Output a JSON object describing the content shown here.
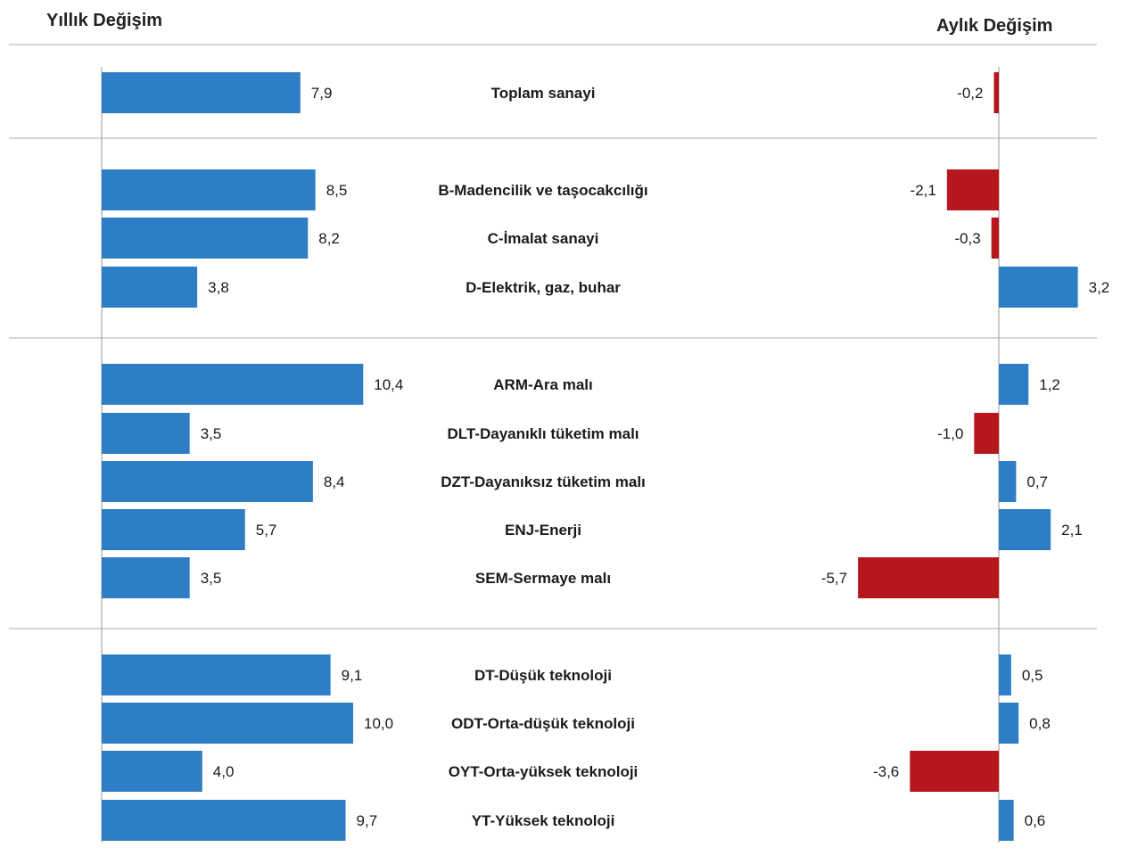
{
  "chart_data": {
    "type": "bar",
    "left_title": "Yıllık Değişim",
    "right_title": "Aylık Değişim",
    "categories": [
      "Toplam sanayi",
      "B-Madencilik ve taşocakcılığı",
      "C-İmalat sanayi",
      "D-Elektrik, gaz, buhar",
      "ARM-Ara malı",
      "DLT-Dayanıklı tüketim malı",
      "DZT-Dayanıksız tüketim malı",
      "ENJ-Enerji",
      "SEM-Sermaye malı",
      "DT-Düşük teknoloji",
      "ODT-Orta-düşük teknoloji",
      "OYT-Orta-yüksek teknoloji",
      "YT-Yüksek teknoloji"
    ],
    "series": [
      {
        "values": [
          7.9,
          8.5,
          8.2,
          3.8,
          10.4,
          3.5,
          8.4,
          5.7,
          3.5,
          9.1,
          10.0,
          4.0,
          9.7
        ],
        "labels": [
          "7,9",
          "8,5",
          "8,2",
          "3,8",
          "10,4",
          "3,5",
          "8,4",
          "5,7",
          "3,5",
          "9,1",
          "10,0",
          "4,0",
          "9,7"
        ]
      },
      {
        "values": [
          -0.2,
          -2.1,
          -0.3,
          3.2,
          1.2,
          -1.0,
          0.7,
          2.1,
          -5.7,
          0.5,
          0.8,
          -3.6,
          0.6
        ],
        "labels": [
          "-0,2",
          "-2,1",
          "-0,3",
          "3,2",
          "1,2",
          "-1,0",
          "0,7",
          "2,1",
          "-5,7",
          "0,5",
          "0,8",
          "-3,6",
          "0,6"
        ]
      }
    ],
    "groups": [
      [
        0
      ],
      [
        1,
        2,
        3
      ],
      [
        4,
        5,
        6,
        7,
        8
      ],
      [
        9,
        10,
        11,
        12
      ]
    ],
    "colors": {
      "positive": "#2e7ec6",
      "negative": "#b5171d",
      "separator": "#c8c8c8",
      "axis": "#9a9a9a"
    },
    "grid": false,
    "legend": "none"
  }
}
